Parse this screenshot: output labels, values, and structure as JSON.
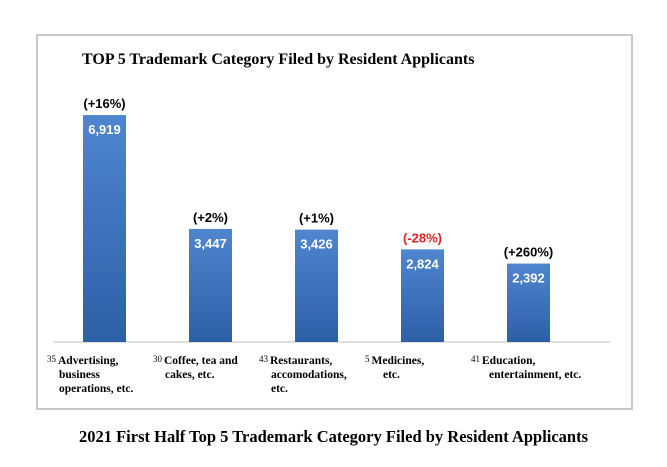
{
  "caption": "2021 First Half Top 5 Trademark Category Filed by Resident Applicants",
  "chart_data": {
    "type": "bar",
    "title": "TOP 5 Trademark Category Filed by Resident Applicants",
    "categories": [
      {
        "code": "35",
        "lines": [
          "Advertising,",
          "business",
          "operations, etc."
        ]
      },
      {
        "code": "30",
        "lines": [
          "Coffee, tea and",
          "cakes, etc."
        ]
      },
      {
        "code": "43",
        "lines": [
          "Restaurants,",
          "accomodations,",
          "etc."
        ]
      },
      {
        "code": "5",
        "lines": [
          "Medicines,",
          "etc."
        ]
      },
      {
        "code": "41",
        "lines": [
          "Education,",
          "entertainment, etc."
        ]
      }
    ],
    "values": [
      6919,
      3447,
      3426,
      2824,
      2392
    ],
    "value_labels": [
      "6,919",
      "3,447",
      "3,426",
      "2,824",
      "2,392"
    ],
    "changes": [
      "(+16%)",
      "(+2%)",
      "(+1%)",
      "(-28%)",
      "(+260%)"
    ],
    "change_colors": [
      "#000000",
      "#000000",
      "#000000",
      "#e02020",
      "#000000"
    ],
    "ylim": [
      0,
      7500
    ],
    "grid": false,
    "bar_color_top": "#4f86cf",
    "bar_color_bottom": "#2d5fa6"
  }
}
